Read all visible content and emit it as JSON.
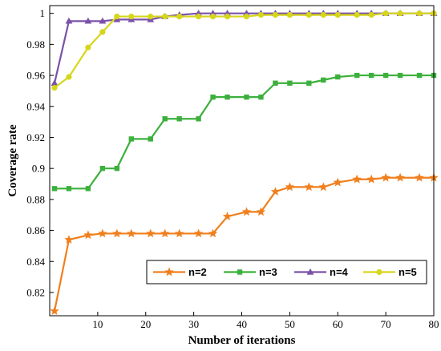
{
  "chart_data": {
    "type": "line",
    "title": "",
    "xlabel": "Number of iterations",
    "ylabel": "Coverage rate",
    "xlim": [
      0,
      80
    ],
    "ylim": [
      0.805,
      1.005
    ],
    "xticks": [
      10,
      20,
      30,
      40,
      50,
      60,
      70,
      80
    ],
    "yticks": [
      0.82,
      0.84,
      0.86,
      0.88,
      0.9,
      0.92,
      0.94,
      0.96,
      0.98,
      1
    ],
    "ytick_labels": [
      "0.82",
      "0.84",
      "0.86",
      "0.88",
      "0.9",
      "0.92",
      "0.94",
      "0.96",
      "0.98",
      "1"
    ],
    "grid": false,
    "legend_position": "bottom-right",
    "x": [
      1,
      4,
      8,
      11,
      14,
      17,
      21,
      24,
      27,
      31,
      34,
      37,
      41,
      44,
      47,
      50,
      54,
      57,
      60,
      64,
      67,
      70,
      73,
      77,
      80
    ],
    "series": [
      {
        "name": "n=2",
        "color": "#f07f1d",
        "marker": "star",
        "values": [
          0.808,
          0.854,
          0.857,
          0.858,
          0.858,
          0.858,
          0.858,
          0.858,
          0.858,
          0.858,
          0.858,
          0.869,
          0.872,
          0.872,
          0.885,
          0.888,
          0.888,
          0.888,
          0.891,
          0.893,
          0.893,
          0.894,
          0.894,
          0.894,
          0.894
        ]
      },
      {
        "name": "n=3",
        "color": "#3cb03c",
        "marker": "square",
        "values": [
          0.887,
          0.887,
          0.887,
          0.9,
          0.9,
          0.919,
          0.919,
          0.932,
          0.932,
          0.932,
          0.946,
          0.946,
          0.946,
          0.946,
          0.955,
          0.955,
          0.955,
          0.957,
          0.959,
          0.96,
          0.96,
          0.96,
          0.96,
          0.96,
          0.96
        ]
      },
      {
        "name": "n=4",
        "color": "#7a52a8",
        "marker": "triangle",
        "values": [
          0.955,
          0.995,
          0.995,
          0.995,
          0.996,
          0.996,
          0.996,
          0.998,
          0.999,
          1.0,
          1.0,
          1.0,
          1.0,
          1.0,
          1.0,
          1.0,
          1.0,
          1.0,
          1.0,
          1.0,
          1.0,
          1.0,
          1.0,
          1.0,
          1.0
        ]
      },
      {
        "name": "n=5",
        "color": "#d6d61c",
        "marker": "circle",
        "values": [
          0.952,
          0.959,
          0.978,
          0.988,
          0.998,
          0.998,
          0.998,
          0.998,
          0.998,
          0.998,
          0.998,
          0.998,
          0.998,
          0.999,
          0.999,
          0.999,
          0.999,
          0.999,
          0.999,
          0.999,
          0.999,
          1.0,
          1.0,
          1.0,
          1.0
        ]
      }
    ]
  }
}
